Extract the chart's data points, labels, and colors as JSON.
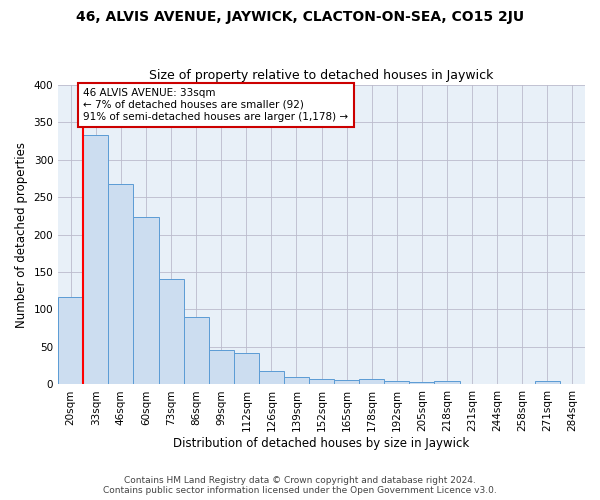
{
  "title1": "46, ALVIS AVENUE, JAYWICK, CLACTON-ON-SEA, CO15 2JU",
  "title2": "Size of property relative to detached houses in Jaywick",
  "xlabel": "Distribution of detached houses by size in Jaywick",
  "ylabel": "Number of detached properties",
  "categories": [
    "20sqm",
    "33sqm",
    "46sqm",
    "60sqm",
    "73sqm",
    "86sqm",
    "99sqm",
    "112sqm",
    "126sqm",
    "139sqm",
    "152sqm",
    "165sqm",
    "178sqm",
    "192sqm",
    "205sqm",
    "218sqm",
    "231sqm",
    "244sqm",
    "258sqm",
    "271sqm",
    "284sqm"
  ],
  "values": [
    117,
    333,
    267,
    224,
    141,
    90,
    46,
    42,
    18,
    10,
    7,
    6,
    7,
    4,
    3,
    5,
    0,
    0,
    0,
    5,
    0
  ],
  "bar_color": "#ccddf0",
  "bar_edge_color": "#5b9bd5",
  "highlight_index": 1,
  "highlight_line_color": "#ff0000",
  "ylim": [
    0,
    400
  ],
  "yticks": [
    0,
    50,
    100,
    150,
    200,
    250,
    300,
    350,
    400
  ],
  "annotation_text": "46 ALVIS AVENUE: 33sqm\n← 7% of detached houses are smaller (92)\n91% of semi-detached houses are larger (1,178) →",
  "annotation_box_color": "#ffffff",
  "annotation_box_edge": "#cc0000",
  "footer1": "Contains HM Land Registry data © Crown copyright and database right 2024.",
  "footer2": "Contains public sector information licensed under the Open Government Licence v3.0.",
  "bg_color": "#ffffff",
  "plot_bg_color": "#e8f0f8",
  "grid_color": "#bbbbcc",
  "title1_fontsize": 10,
  "title2_fontsize": 9,
  "axis_label_fontsize": 8.5,
  "tick_fontsize": 7.5,
  "footer_fontsize": 6.5
}
